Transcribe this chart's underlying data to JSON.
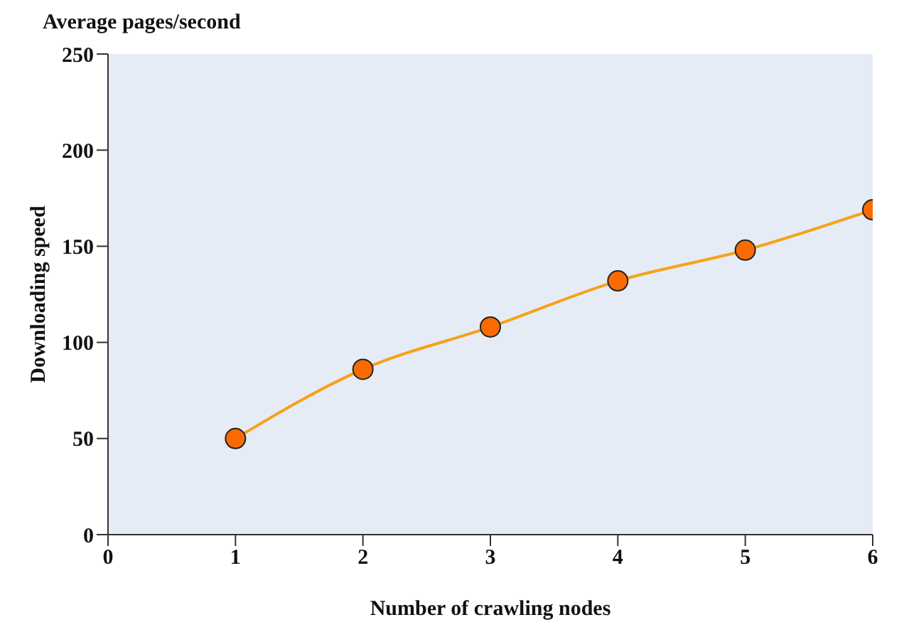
{
  "chart_data": {
    "type": "line",
    "title": "Average pages/second",
    "xlabel": "Number of crawling nodes",
    "ylabel": "Downloading speed",
    "x": [
      1,
      2,
      3,
      4,
      5,
      6
    ],
    "series": [
      {
        "color": "#f7a11a",
        "values": [
          50,
          86,
          108,
          132,
          148,
          169
        ]
      }
    ],
    "xlim": [
      0,
      6
    ],
    "xticks": [
      0,
      1,
      2,
      3,
      4,
      5,
      6
    ],
    "ylim": [
      0,
      250
    ],
    "yticks": [
      0,
      50,
      100,
      150,
      200,
      250
    ],
    "grid": false,
    "legend": false,
    "marker": "circle"
  }
}
